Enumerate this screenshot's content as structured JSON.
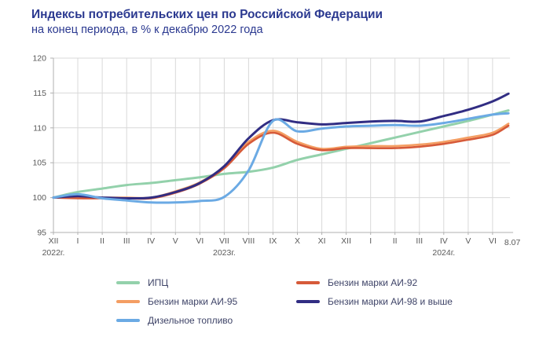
{
  "header": {
    "title": "Индексы потребительских цен по Российской Федерации",
    "subtitle": "на конец периода, в % к декабрю 2022 года"
  },
  "chart_data": {
    "type": "line",
    "title": "Индексы потребительских цен по Российской Федерации",
    "subtitle": "на конец периода, в % к декабрю 2022 года",
    "ylabel": "",
    "xlabel": "",
    "ylim": [
      95,
      120
    ],
    "ytick_step": 5,
    "grid": true,
    "x_tick_labels": [
      "XII",
      "I",
      "II",
      "III",
      "IV",
      "V",
      "VI",
      "VII",
      "VIII",
      "IX",
      "X",
      "XI",
      "XII",
      "I",
      "II",
      "III",
      "IV",
      "V",
      "VI"
    ],
    "last_point_label": "8.07",
    "last_point_t": 18.65,
    "year_labels": [
      {
        "text": "2022г.",
        "month_index": 0
      },
      {
        "text": "2023г.",
        "month_index": 7
      },
      {
        "text": "2024г.",
        "month_index": 16
      }
    ],
    "series": [
      {
        "key": "ipc",
        "name": "ИПЦ",
        "color": "#93d1ab",
        "values": [
          100,
          100.8,
          101.3,
          101.8,
          102.1,
          102.5,
          102.9,
          103.4,
          103.7,
          104.3,
          105.4,
          106.2,
          107.0,
          107.8,
          108.6,
          109.4,
          110.2,
          111.0,
          111.9,
          112.5
        ]
      },
      {
        "key": "ai95",
        "name": "Бензин марки АИ-95",
        "color": "#f49e63",
        "values": [
          100,
          100.0,
          100.0,
          100.0,
          100.0,
          100.9,
          102.2,
          104.4,
          108.0,
          109.6,
          108.0,
          107.0,
          107.3,
          107.4,
          107.4,
          107.6,
          108.0,
          108.6,
          109.3,
          110.6
        ]
      },
      {
        "key": "ai92",
        "name": "Бензин марки АИ-92",
        "color": "#d65a39",
        "values": [
          100,
          99.9,
          99.9,
          99.9,
          99.9,
          100.7,
          102.0,
          104.2,
          107.7,
          109.3,
          107.7,
          106.8,
          107.1,
          107.1,
          107.1,
          107.3,
          107.7,
          108.3,
          109.0,
          110.3
        ]
      },
      {
        "key": "ai98",
        "name": "Бензин марки АИ-98 и выше",
        "color": "#312d83",
        "values": [
          100,
          100.2,
          100.0,
          99.9,
          100.0,
          100.8,
          102.1,
          104.5,
          108.5,
          111.1,
          110.8,
          110.5,
          110.7,
          110.9,
          111.0,
          110.9,
          111.7,
          112.6,
          113.8,
          114.9
        ]
      },
      {
        "key": "diesel",
        "name": "Дизельное топливо",
        "color": "#6baae4",
        "values": [
          100,
          100.5,
          99.9,
          99.6,
          99.3,
          99.3,
          99.5,
          100.1,
          103.9,
          111.0,
          109.5,
          109.9,
          110.2,
          110.3,
          110.4,
          110.3,
          110.7,
          111.3,
          111.9,
          112.1
        ]
      }
    ],
    "legend": {
      "position": "bottom",
      "columns": [
        [
          "ipc",
          "ai95",
          "diesel"
        ],
        [
          "ai92",
          "ai98"
        ]
      ]
    }
  },
  "style_colors": {
    "title": "#2b3990",
    "axis_line": "#b0b0b0",
    "gridline": "#d9d9d9",
    "tick_text": "#595959",
    "legend_text": "#3f4468"
  }
}
